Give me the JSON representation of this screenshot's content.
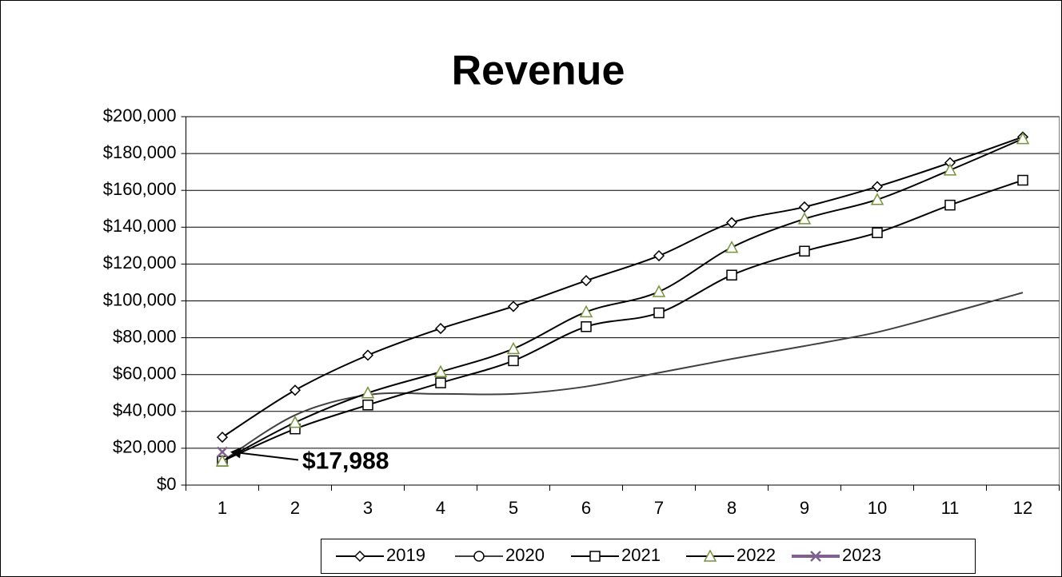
{
  "chart_data": {
    "type": "line",
    "title": "Revenue",
    "categories": [
      "1",
      "2",
      "3",
      "4",
      "5",
      "6",
      "7",
      "8",
      "9",
      "10",
      "11",
      "12"
    ],
    "series": [
      {
        "name": "2019",
        "color": "#000000",
        "marker": "diamond",
        "marker_color": "#000000",
        "values": [
          26000,
          51500,
          70500,
          85000,
          97000,
          111000,
          124500,
          142500,
          151000,
          162000,
          175000,
          189000
        ]
      },
      {
        "name": "2020",
        "color": "#404040",
        "marker": "circle",
        "marker_color": "#000000",
        "values": [
          13000,
          38000,
          49000,
          49500,
          49500,
          53500,
          61000,
          68500,
          75500,
          83000,
          93500,
          104500
        ]
      },
      {
        "name": "2021",
        "color": "#000000",
        "marker": "square",
        "marker_color": "#000000",
        "values": [
          13000,
          30500,
          43500,
          55500,
          67500,
          86000,
          93500,
          114000,
          127000,
          137000,
          152000,
          165500
        ]
      },
      {
        "name": "2022",
        "color": "#000000",
        "marker": "triangle",
        "marker_color": "#77933c",
        "values": [
          13000,
          34000,
          50000,
          61500,
          74000,
          94000,
          105000,
          129000,
          144500,
          155000,
          171000,
          188000
        ]
      },
      {
        "name": "2023",
        "color": "#7f6090",
        "marker": "x",
        "marker_color": "#7f6090",
        "values": [
          17988,
          null,
          null,
          null,
          null,
          null,
          null,
          null,
          null,
          null,
          null,
          null
        ],
        "value_labels": [
          "$17,988",
          null,
          null,
          null,
          null,
          null,
          null,
          null,
          null,
          null,
          null,
          null
        ]
      }
    ],
    "ylim": [
      0,
      200000
    ],
    "yticks": [
      {
        "value": 0,
        "label": "$0"
      },
      {
        "value": 20000,
        "label": "$20,000"
      },
      {
        "value": 40000,
        "label": "$40,000"
      },
      {
        "value": 60000,
        "label": "$60,000"
      },
      {
        "value": 80000,
        "label": "$80,000"
      },
      {
        "value": 100000,
        "label": "$100,000"
      },
      {
        "value": 120000,
        "label": "$120,000"
      },
      {
        "value": 140000,
        "label": "$140,000"
      },
      {
        "value": 160000,
        "label": "$160,000"
      },
      {
        "value": 180000,
        "label": "$180,000"
      },
      {
        "value": 200000,
        "label": "$200,000"
      }
    ],
    "grid": true,
    "smooth": true,
    "legend": "bottom"
  }
}
